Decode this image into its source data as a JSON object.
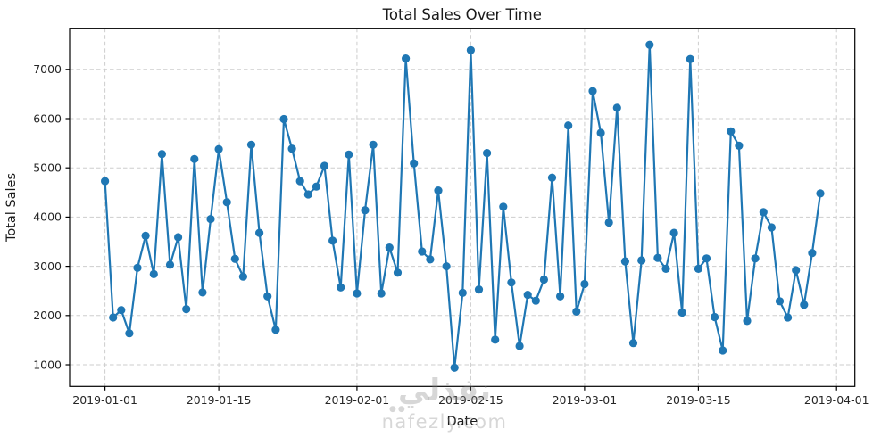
{
  "watermark": {
    "logo_text": "نفذلي",
    "dots": "●●",
    "site_text": "nafezly.com"
  },
  "chart_data": {
    "type": "line",
    "title": "Total Sales Over Time",
    "xlabel": "Date",
    "ylabel": "Total Sales",
    "series_name": "Total Sales",
    "line_color": "#1f77b4",
    "marker": "circle",
    "grid": true,
    "grid_style": "dashed",
    "grid_color": "#cdcdcd",
    "x_tick_labels": [
      "2019-01-01",
      "2019-01-15",
      "2019-02-01",
      "2019-02-15",
      "2019-03-01",
      "2019-03-15",
      "2019-04-01"
    ],
    "y_ticks": [
      1000,
      2000,
      3000,
      4000,
      5000,
      6000,
      7000
    ],
    "ylim": [
      560,
      7835
    ],
    "xlim_days": [
      -4.35,
      92.25
    ],
    "dates": [
      "2019-01-01",
      "2019-01-02",
      "2019-01-03",
      "2019-01-04",
      "2019-01-05",
      "2019-01-06",
      "2019-01-07",
      "2019-01-08",
      "2019-01-09",
      "2019-01-10",
      "2019-01-11",
      "2019-01-12",
      "2019-01-13",
      "2019-01-14",
      "2019-01-15",
      "2019-01-16",
      "2019-01-17",
      "2019-01-18",
      "2019-01-19",
      "2019-01-20",
      "2019-01-21",
      "2019-01-22",
      "2019-01-23",
      "2019-01-24",
      "2019-01-25",
      "2019-01-26",
      "2019-01-27",
      "2019-01-28",
      "2019-01-29",
      "2019-01-30",
      "2019-01-31",
      "2019-02-01",
      "2019-02-02",
      "2019-02-03",
      "2019-02-04",
      "2019-02-05",
      "2019-02-06",
      "2019-02-07",
      "2019-02-08",
      "2019-02-09",
      "2019-02-10",
      "2019-02-11",
      "2019-02-12",
      "2019-02-13",
      "2019-02-14",
      "2019-02-15",
      "2019-02-16",
      "2019-02-17",
      "2019-02-18",
      "2019-02-19",
      "2019-02-20",
      "2019-02-21",
      "2019-02-22",
      "2019-02-23",
      "2019-02-24",
      "2019-02-25",
      "2019-02-26",
      "2019-02-27",
      "2019-02-28",
      "2019-03-01",
      "2019-03-02",
      "2019-03-03",
      "2019-03-04",
      "2019-03-05",
      "2019-03-06",
      "2019-03-07",
      "2019-03-08",
      "2019-03-09",
      "2019-03-10",
      "2019-03-11",
      "2019-03-12",
      "2019-03-13",
      "2019-03-14",
      "2019-03-15",
      "2019-03-16",
      "2019-03-17",
      "2019-03-18",
      "2019-03-19",
      "2019-03-20",
      "2019-03-21",
      "2019-03-22",
      "2019-03-23",
      "2019-03-24",
      "2019-03-25",
      "2019-03-26",
      "2019-03-27",
      "2019-03-28",
      "2019-03-29",
      "2019-03-30"
    ],
    "values": [
      4730,
      1960,
      2110,
      1640,
      2970,
      3620,
      2840,
      5280,
      3030,
      3590,
      2130,
      5180,
      2470,
      3960,
      5380,
      4300,
      3150,
      2790,
      5470,
      3680,
      2390,
      1710,
      5990,
      5390,
      4730,
      4460,
      4620,
      5040,
      3520,
      2570,
      5270,
      2450,
      4140,
      5470,
      2450,
      3380,
      2870,
      7220,
      5090,
      3300,
      3140,
      4540,
      3000,
      940,
      2460,
      7390,
      2530,
      5300,
      1510,
      4210,
      2670,
      1380,
      2420,
      2300,
      2730,
      4800,
      2390,
      5860,
      2080,
      2640,
      6560,
      5710,
      3890,
      6220,
      3100,
      1440,
      3120,
      7500,
      3170,
      2950,
      3680,
      2060,
      7210,
      2950,
      3160,
      1970,
      1290,
      5740,
      5450,
      1890,
      3160,
      4100,
      3790,
      2290,
      1960,
      2920,
      2220,
      3270,
      4480
    ]
  }
}
